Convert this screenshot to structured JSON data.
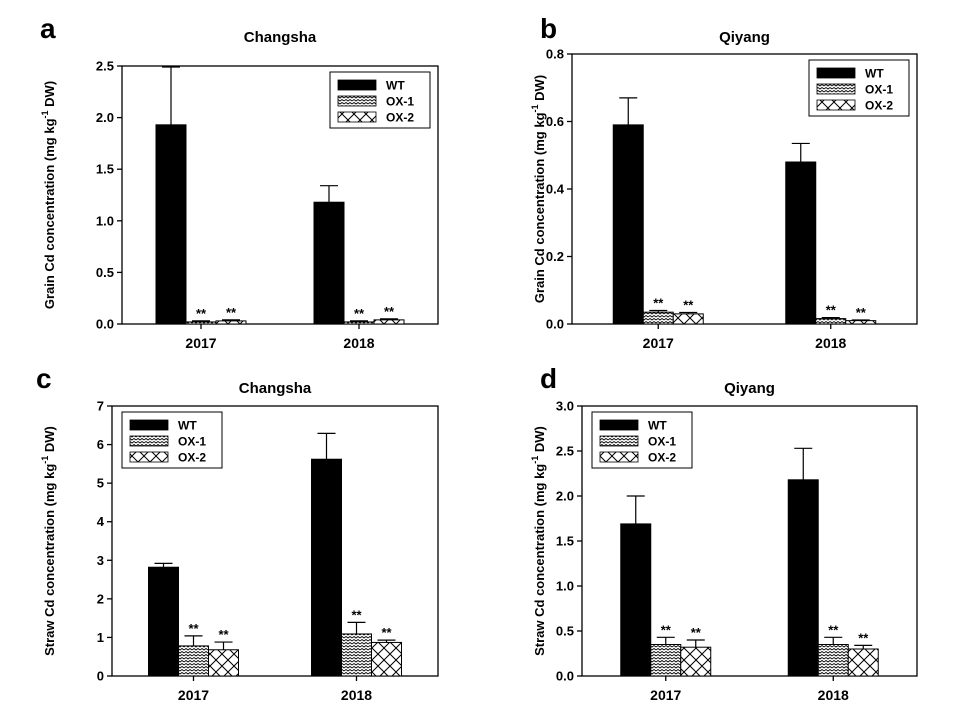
{
  "chart_data": [
    {
      "type": "bar",
      "panel": "a",
      "title": "Changsha",
      "ylabel": "Grain Cd concentration (mg kg-1 DW)",
      "ylabel_parts": [
        "Grain Cd concentration (mg kg",
        "-1",
        " DW)"
      ],
      "xlabel": "",
      "categories": [
        "2017",
        "2018"
      ],
      "ylim": [
        0,
        2.5
      ],
      "yticks": [
        "0.0",
        "0.5",
        "1.0",
        "1.5",
        "2.0",
        "2.5"
      ],
      "ytick_values": [
        0,
        0.5,
        1.0,
        1.5,
        2.0,
        2.5
      ],
      "legend": "top-right",
      "series": [
        {
          "name": "WT",
          "values": [
            1.93,
            1.18
          ],
          "errors": [
            0.56,
            0.16
          ],
          "sig": [
            "",
            ""
          ]
        },
        {
          "name": "OX-1",
          "values": [
            0.02,
            0.02
          ],
          "errors": [
            0.01,
            0.01
          ],
          "sig": [
            "**",
            "**"
          ]
        },
        {
          "name": "OX-2",
          "values": [
            0.03,
            0.04
          ],
          "errors": [
            0.01,
            0.01
          ],
          "sig": [
            "**",
            "**"
          ]
        }
      ]
    },
    {
      "type": "bar",
      "panel": "b",
      "title": "Qiyang",
      "ylabel": "Grain Cd concentration (mg kg-1 DW)",
      "ylabel_parts": [
        "Grain Cd concentration (mg kg",
        "-1",
        " DW)"
      ],
      "xlabel": "",
      "categories": [
        "2017",
        "2018"
      ],
      "ylim": [
        0,
        0.8
      ],
      "yticks": [
        "0.0",
        "0.2",
        "0.4",
        "0.6",
        "0.8"
      ],
      "ytick_values": [
        0,
        0.2,
        0.4,
        0.6,
        0.8
      ],
      "legend": "top-right",
      "series": [
        {
          "name": "WT",
          "values": [
            0.59,
            0.48
          ],
          "errors": [
            0.08,
            0.055
          ],
          "sig": [
            "",
            ""
          ]
        },
        {
          "name": "OX-1",
          "values": [
            0.035,
            0.016
          ],
          "errors": [
            0.005,
            0.003
          ],
          "sig": [
            "**",
            "**"
          ]
        },
        {
          "name": "OX-2",
          "values": [
            0.03,
            0.01
          ],
          "errors": [
            0.004,
            0.002
          ],
          "sig": [
            "**",
            "**"
          ]
        }
      ]
    },
    {
      "type": "bar",
      "panel": "c",
      "title": "Changsha",
      "ylabel": "Straw Cd concentration (mg kg-1 DW)",
      "ylabel_parts": [
        "Straw Cd concentration (mg kg",
        "-1",
        " DW)"
      ],
      "xlabel": "",
      "categories": [
        "2017",
        "2018"
      ],
      "ylim": [
        0,
        7
      ],
      "yticks": [
        "0",
        "1",
        "2",
        "3",
        "4",
        "5",
        "6",
        "7"
      ],
      "ytick_values": [
        0,
        1,
        2,
        3,
        4,
        5,
        6,
        7
      ],
      "legend": "top-left",
      "series": [
        {
          "name": "WT",
          "values": [
            2.82,
            5.62
          ],
          "errors": [
            0.1,
            0.67
          ],
          "sig": [
            "",
            ""
          ]
        },
        {
          "name": "OX-1",
          "values": [
            0.78,
            1.09
          ],
          "errors": [
            0.26,
            0.3
          ],
          "sig": [
            "**",
            "**"
          ]
        },
        {
          "name": "OX-2",
          "values": [
            0.68,
            0.87
          ],
          "errors": [
            0.2,
            0.06
          ],
          "sig": [
            "**",
            "**"
          ]
        }
      ]
    },
    {
      "type": "bar",
      "panel": "d",
      "title": "Qiyang",
      "ylabel": "Straw Cd concentration (mg kg-1 DW)",
      "ylabel_parts": [
        "Straw Cd concentration (mg kg",
        "-1",
        " DW)"
      ],
      "xlabel": "",
      "categories": [
        "2017",
        "2018"
      ],
      "ylim": [
        0,
        3.0
      ],
      "yticks": [
        "0.0",
        "0.5",
        "1.0",
        "1.5",
        "2.0",
        "2.5",
        "3.0"
      ],
      "ytick_values": [
        0,
        0.5,
        1.0,
        1.5,
        2.0,
        2.5,
        3.0
      ],
      "legend": "top-left",
      "series": [
        {
          "name": "WT",
          "values": [
            1.69,
            2.18
          ],
          "errors": [
            0.31,
            0.35
          ],
          "sig": [
            "",
            ""
          ]
        },
        {
          "name": "OX-1",
          "values": [
            0.35,
            0.35
          ],
          "errors": [
            0.08,
            0.08
          ],
          "sig": [
            "**",
            "**"
          ]
        },
        {
          "name": "OX-2",
          "values": [
            0.32,
            0.3
          ],
          "errors": [
            0.08,
            0.04
          ],
          "sig": [
            "**",
            "**"
          ]
        }
      ]
    }
  ],
  "colors": {
    "bar_wt": "#000000",
    "bar_edge": "#000000",
    "background": "#ffffff",
    "hatch": "#000000"
  },
  "icons": {
    "wt_swatch": "solid-fill-icon",
    "ox1_swatch": "wave-hatch-icon",
    "ox2_swatch": "crosshatch-icon"
  }
}
